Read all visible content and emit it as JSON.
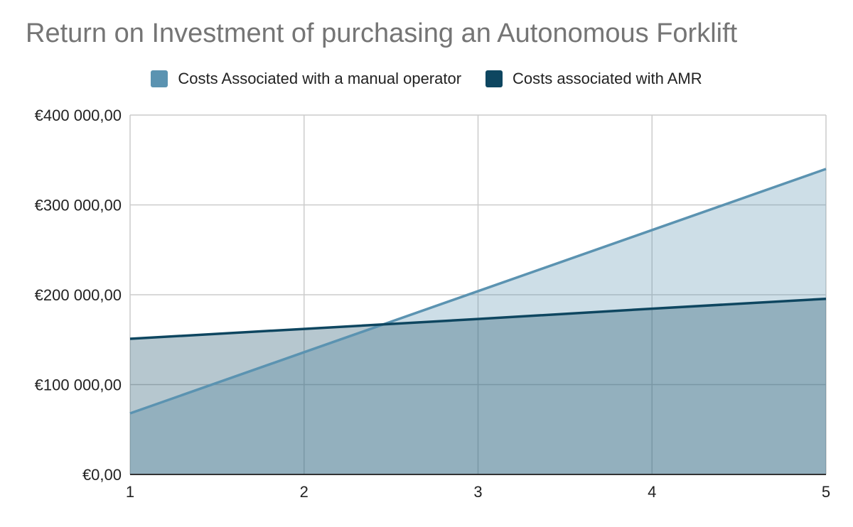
{
  "chart_data": {
    "type": "area",
    "title": "Return on Investment of purchasing an Autonomous Forklift",
    "x": [
      1,
      2,
      3,
      4,
      5
    ],
    "x_tick_labels": [
      "1",
      "2",
      "3",
      "4",
      "5"
    ],
    "y_tick_values": [
      0,
      100000,
      200000,
      300000,
      400000
    ],
    "y_tick_labels": [
      "€0,00",
      "€100 000,00",
      "€200 000,00",
      "€300 000,00",
      "€400 000,00"
    ],
    "ylim": [
      0,
      400000
    ],
    "xlim": [
      1,
      5
    ],
    "grid": true,
    "legend_position": "top",
    "series": [
      {
        "name": "Costs Associated with a manual operator",
        "color": "#5b93b1",
        "values": [
          68000,
          136000,
          204000,
          272000,
          340000
        ]
      },
      {
        "name": "Costs associated with AMR",
        "color": "#0e4660",
        "values": [
          151000,
          162000,
          173000,
          184500,
          195500
        ]
      }
    ]
  }
}
